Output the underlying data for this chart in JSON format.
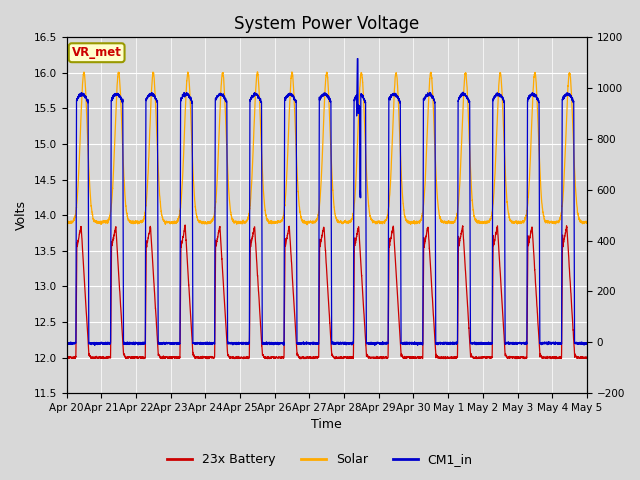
{
  "title": "System Power Voltage",
  "xlabel": "Time",
  "ylabel": "Volts",
  "ylim_left": [
    11.5,
    16.5
  ],
  "ylim_right": [
    -200,
    1200
  ],
  "background_color": "#d8d8d8",
  "plot_bg_color": "#d8d8d8",
  "grid_color": "#ffffff",
  "legend_labels": [
    "23x Battery",
    "Solar",
    "CM1_in"
  ],
  "legend_colors": [
    "#cc0000",
    "#ffaa00",
    "#0000cc"
  ],
  "annotation_text": "VR_met",
  "annotation_color": "#cc0000",
  "annotation_bg": "#ffffcc",
  "annotation_border": "#999900",
  "date_labels": [
    "Apr 20",
    "Apr 21",
    "Apr 22",
    "Apr 23",
    "Apr 24",
    "Apr 25",
    "Apr 26",
    "Apr 27",
    "Apr 28",
    "Apr 29",
    "Apr 30",
    "May 1",
    "May 2",
    "May 3",
    "May 4",
    "May 5"
  ],
  "title_fontsize": 12,
  "axis_fontsize": 9,
  "tick_fontsize": 7.5,
  "yticks_left": [
    11.5,
    12.0,
    12.5,
    13.0,
    13.5,
    14.0,
    14.5,
    15.0,
    15.5,
    16.0,
    16.5
  ],
  "yticks_right": [
    -200,
    0,
    200,
    400,
    600,
    800,
    1000,
    1200
  ],
  "n_days": 15
}
